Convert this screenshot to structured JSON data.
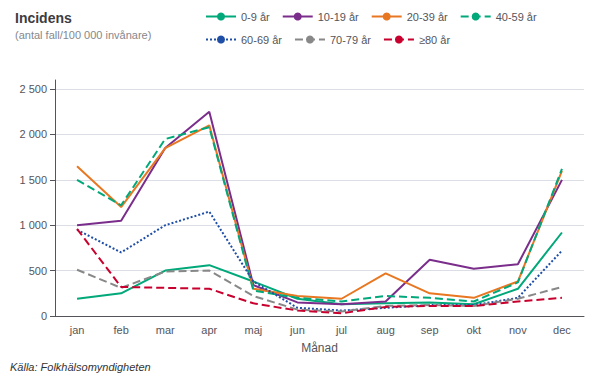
{
  "chart_data": {
    "type": "line",
    "title": "Incidens",
    "subtitle": "(antal fall/100 000 invånare)",
    "x_label": "Månad",
    "annotations": [
      "Källa: Folkhälsomyndigheten"
    ],
    "categories": [
      "jan",
      "feb",
      "mar",
      "apr",
      "maj",
      "jun",
      "jul",
      "aug",
      "sep",
      "okt",
      "nov",
      "dec"
    ],
    "series": [
      {
        "name": "0-9 år",
        "color": "#00A87A",
        "line_style": "solid",
        "values": [
          190,
          250,
          500,
          560,
          380,
          190,
          130,
          140,
          150,
          130,
          300,
          920
        ]
      },
      {
        "name": "10-19 år",
        "color": "#7B2D8B",
        "line_style": "solid",
        "values": [
          1000,
          1050,
          1850,
          2250,
          340,
          150,
          130,
          160,
          620,
          520,
          570,
          1500
        ]
      },
      {
        "name": "20-39 år",
        "color": "#E87722",
        "line_style": "solid",
        "values": [
          1650,
          1200,
          1850,
          2100,
          300,
          220,
          190,
          470,
          250,
          200,
          380,
          1600
        ]
      },
      {
        "name": "40-59 år",
        "color": "#00A87A",
        "line_style": "dashed",
        "values": [
          1500,
          1220,
          1950,
          2080,
          280,
          200,
          160,
          220,
          200,
          160,
          370,
          1620
        ]
      },
      {
        "name": "60-69 år",
        "color": "#1F4EA6",
        "line_style": "dotted",
        "values": [
          950,
          700,
          1000,
          1150,
          380,
          90,
          60,
          90,
          120,
          120,
          200,
          720
        ]
      },
      {
        "name": "70-79 år",
        "color": "#888888",
        "line_style": "dashed",
        "values": [
          510,
          310,
          490,
          500,
          220,
          70,
          50,
          110,
          120,
          110,
          190,
          320
        ]
      },
      {
        "name": "≥80 år",
        "color": "#C8002D",
        "line_style": "dashed",
        "values": [
          960,
          320,
          310,
          300,
          140,
          60,
          30,
          100,
          110,
          110,
          160,
          200
        ]
      }
    ],
    "ylim": [
      0,
      2600
    ],
    "yticks": [
      0,
      500,
      {
        "value": 1000,
        "label": "1 000"
      },
      {
        "value": 1500,
        "label": "1 500"
      },
      {
        "value": 2000,
        "label": "2 000"
      },
      {
        "value": 2500,
        "label": "2 500"
      }
    ],
    "grid": true,
    "legend": "top"
  }
}
